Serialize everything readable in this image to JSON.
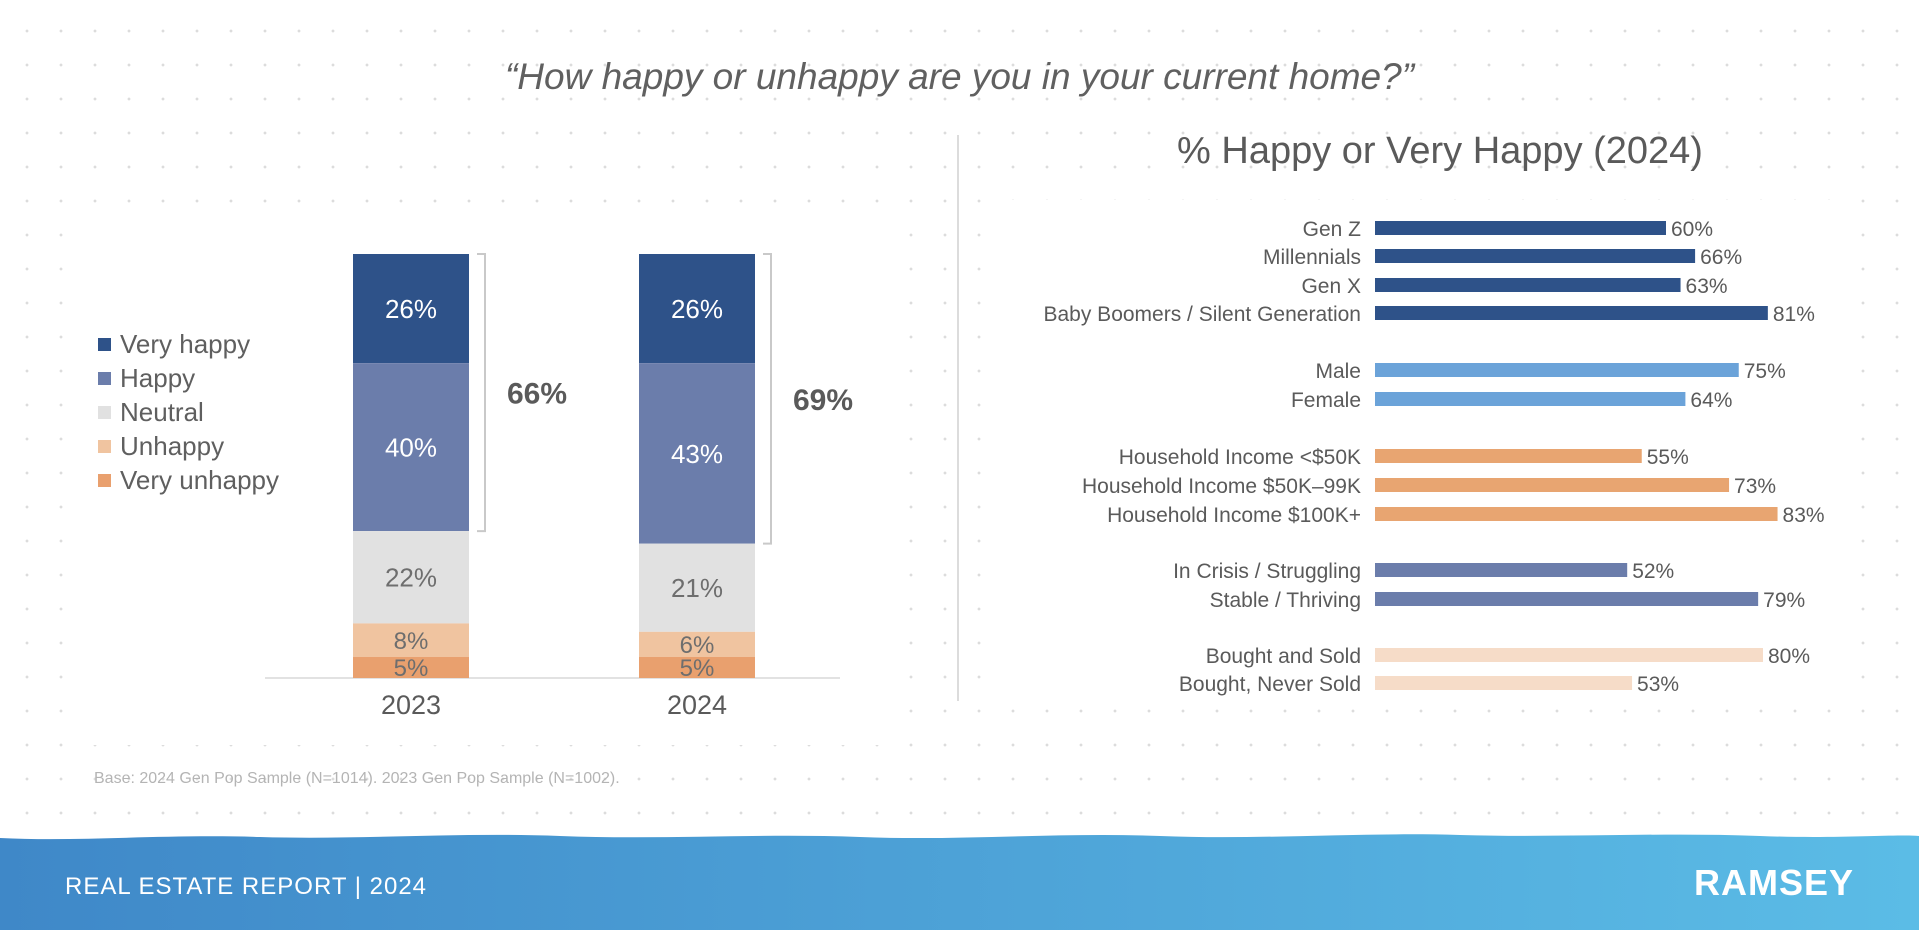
{
  "page": {
    "question": "“How happy or unhappy are you in your current home?”",
    "right_title": "% Happy or Very Happy (2024)",
    "base_note": "Base: 2024 Gen Pop Sample (N=1014). 2023 Gen Pop Sample (N=1002).",
    "footer_label": "REAL ESTATE REPORT | 2024",
    "brand": "RAMSEY"
  },
  "colors": {
    "very_happy": "#2e5289",
    "happy": "#6b7dab",
    "neutral": "#e1e1e1",
    "unhappy": "#f0c4a0",
    "very_unhappy": "#e9a06e",
    "gen_bar": "#2e5289",
    "gender_bar": "#6ba3d9",
    "income_bar": "#e8a571",
    "finance_bar": "#6b7dab",
    "home_bar": "#f6dcc8",
    "footer": "#4b9ad4"
  },
  "chart_data": [
    {
      "type": "bar",
      "stacked": true,
      "categories": [
        "2023",
        "2024"
      ],
      "series": [
        {
          "name": "Very happy",
          "values": [
            26,
            26
          ],
          "labels": [
            "26%",
            "26%"
          ]
        },
        {
          "name": "Happy",
          "values": [
            40,
            43
          ],
          "labels": [
            "40%",
            "43%"
          ]
        },
        {
          "name": "Neutral",
          "values": [
            22,
            21
          ],
          "labels": [
            "22%",
            "21%"
          ]
        },
        {
          "name": "Unhappy",
          "values": [
            8,
            6
          ],
          "labels": [
            "8%",
            "6%"
          ]
        },
        {
          "name": "Very unhappy",
          "values": [
            5,
            5
          ],
          "labels": [
            "5%",
            "5%"
          ]
        }
      ],
      "bracket_totals": [
        "66%",
        "69%"
      ],
      "legend_position": "left",
      "grid": false
    },
    {
      "type": "bar",
      "orientation": "horizontal",
      "title": "% Happy or Very Happy (2024)",
      "xlim": [
        0,
        100
      ],
      "grid": false,
      "groups": [
        {
          "color_key": "gen_bar",
          "items": [
            {
              "label": "Gen Z",
              "value": 60,
              "value_label": "60%"
            },
            {
              "label": "Millennials",
              "value": 66,
              "value_label": "66%"
            },
            {
              "label": "Gen X",
              "value": 63,
              "value_label": "63%"
            },
            {
              "label": "Baby Boomers / Silent Generation",
              "value": 81,
              "value_label": "81%"
            }
          ]
        },
        {
          "color_key": "gender_bar",
          "items": [
            {
              "label": "Male",
              "value": 75,
              "value_label": "75%"
            },
            {
              "label": "Female",
              "value": 64,
              "value_label": "64%"
            }
          ]
        },
        {
          "color_key": "income_bar",
          "items": [
            {
              "label": "Household Income <$50K",
              "value": 55,
              "value_label": "55%"
            },
            {
              "label": "Household Income $50K–99K",
              "value": 73,
              "value_label": "73%"
            },
            {
              "label": "Household Income $100K+",
              "value": 83,
              "value_label": "83%"
            }
          ]
        },
        {
          "color_key": "finance_bar",
          "items": [
            {
              "label": "In Crisis / Struggling",
              "value": 52,
              "value_label": "52%"
            },
            {
              "label": "Stable / Thriving",
              "value": 79,
              "value_label": "79%"
            }
          ]
        },
        {
          "color_key": "home_bar",
          "items": [
            {
              "label": "Bought and Sold",
              "value": 80,
              "value_label": "80%"
            },
            {
              "label": "Bought, Never Sold",
              "value": 53,
              "value_label": "53%"
            }
          ]
        }
      ]
    }
  ]
}
